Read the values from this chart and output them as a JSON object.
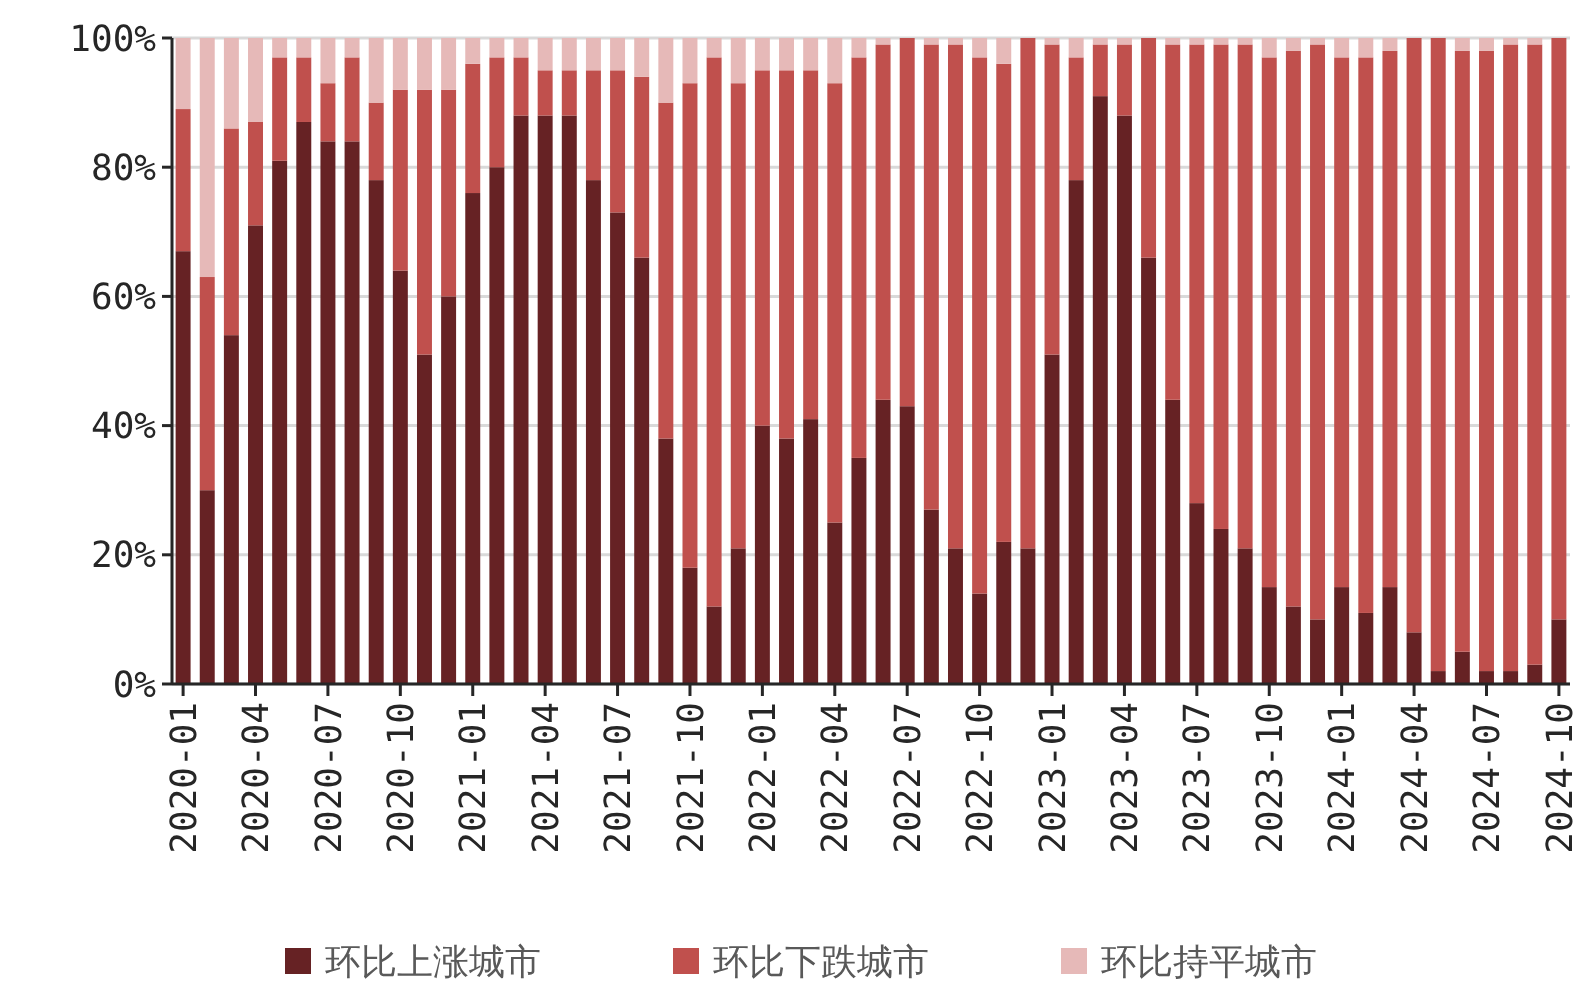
{
  "chart_data": {
    "type": "bar",
    "stacked": true,
    "categories": [
      "2020-01",
      null,
      null,
      "2020-04",
      null,
      null,
      "2020-07",
      null,
      null,
      "2020-10",
      null,
      null,
      "2021-01",
      null,
      null,
      "2021-04",
      null,
      null,
      "2021-07",
      null,
      null,
      "2021-10",
      null,
      null,
      "2022-01",
      null,
      null,
      "2022-04",
      null,
      null,
      "2022-07",
      null,
      null,
      "2022-10",
      null,
      null,
      "2023-01",
      null,
      null,
      "2023-04",
      null,
      null,
      "2023-07",
      null,
      null,
      "2023-10",
      null,
      null,
      "2024-01",
      null,
      null,
      "2024-04",
      null,
      null,
      "2024-07",
      null,
      null,
      "2024-10"
    ],
    "series": [
      {
        "name": "环比上涨城市",
        "color": "#662224",
        "values": [
          67,
          30,
          54,
          71,
          81,
          87,
          84,
          84,
          78,
          64,
          51,
          60,
          76,
          80,
          88,
          88,
          88,
          78,
          73,
          66,
          38,
          18,
          12,
          21,
          40,
          38,
          41,
          25,
          35,
          44,
          43,
          27,
          21,
          14,
          22,
          21,
          51,
          78,
          91,
          88,
          66,
          44,
          28,
          24,
          21,
          15,
          12,
          10,
          15,
          11,
          15,
          8,
          2,
          5,
          2,
          2,
          3,
          10
        ]
      },
      {
        "name": "环比下跌城市",
        "color": "#c0504d",
        "values": [
          22,
          33,
          32,
          16,
          16,
          10,
          9,
          13,
          12,
          28,
          41,
          32,
          20,
          17,
          9,
          7,
          7,
          17,
          22,
          28,
          52,
          75,
          85,
          72,
          55,
          57,
          54,
          68,
          62,
          55,
          57,
          72,
          78,
          83,
          74,
          79,
          48,
          19,
          8,
          11,
          34,
          55,
          71,
          75,
          78,
          82,
          86,
          89,
          82,
          86,
          83,
          92,
          98,
          93,
          96,
          97,
          96,
          90
        ]
      },
      {
        "name": "环比持平城市",
        "color": "#e6b9b8",
        "values": [
          11,
          37,
          14,
          13,
          3,
          3,
          7,
          3,
          10,
          8,
          8,
          8,
          4,
          3,
          3,
          5,
          5,
          5,
          5,
          6,
          10,
          7,
          3,
          7,
          5,
          5,
          5,
          7,
          3,
          1,
          0,
          1,
          1,
          3,
          4,
          0,
          1,
          3,
          1,
          1,
          0,
          1,
          1,
          1,
          1,
          3,
          2,
          1,
          3,
          3,
          2,
          0,
          0,
          2,
          2,
          1,
          1,
          0
        ]
      }
    ],
    "ylim": [
      0,
      100
    ],
    "yticks": [
      {
        "value": 0,
        "label": "0%"
      },
      {
        "value": 20,
        "label": "20%"
      },
      {
        "value": 40,
        "label": "40%"
      },
      {
        "value": 60,
        "label": "60%"
      },
      {
        "value": 80,
        "label": "80%"
      },
      {
        "value": 100,
        "label": "100%"
      }
    ],
    "grid": "y",
    "legend": "bottom"
  }
}
